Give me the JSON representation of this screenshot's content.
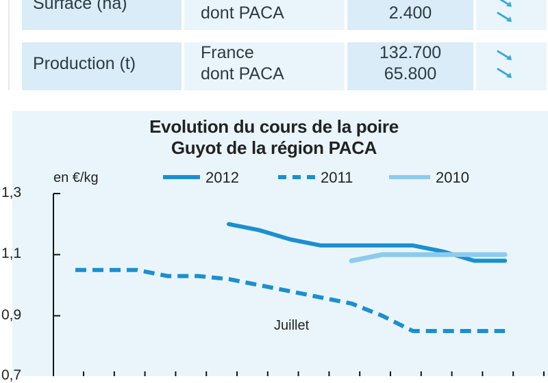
{
  "table": {
    "rows": [
      {
        "label": "Surface (ha)",
        "zones": [
          "",
          "dont PACA"
        ],
        "values": [
          "",
          "2.400"
        ],
        "trends": [
          "trend-down-icon",
          "trend-down-icon"
        ]
      },
      {
        "label": "Production (t)",
        "zones": [
          "France",
          "dont PACA"
        ],
        "values": [
          "132.700",
          "65.800"
        ],
        "trends": [
          "trend-down-icon",
          "trend-down-icon"
        ]
      }
    ]
  },
  "chart_data": {
    "type": "line",
    "title_line1": "Evolution du cours de la poire",
    "title_line2": "Guyot de la région PACA",
    "ylabel": "en €/kg",
    "ylim": [
      0.7,
      1.3
    ],
    "yticks": [
      "1,3",
      "1,1",
      "0,9",
      "0,7"
    ],
    "ytick_values": [
      1.3,
      1.1,
      0.9,
      0.7
    ],
    "x": [
      0,
      1,
      2,
      3,
      4,
      5,
      6,
      7,
      8,
      9,
      10,
      11,
      12,
      13,
      14,
      15
    ],
    "annotation": "Juillet",
    "series": [
      {
        "name": "2012",
        "style": "solid",
        "color": "#1a8fd2",
        "values": [
          null,
          null,
          null,
          null,
          null,
          1.2,
          1.18,
          1.15,
          1.13,
          1.13,
          1.13,
          1.13,
          1.11,
          1.08,
          1.08,
          null
        ]
      },
      {
        "name": "2011",
        "style": "dashed",
        "color": "#1a8fd2",
        "values": [
          1.05,
          1.05,
          1.05,
          1.03,
          1.03,
          1.02,
          1.0,
          0.98,
          0.96,
          0.94,
          0.9,
          0.85,
          0.85,
          0.85,
          0.85,
          null
        ]
      },
      {
        "name": "2010",
        "style": "solid",
        "color": "#8ccbee",
        "values": [
          null,
          null,
          null,
          null,
          null,
          null,
          null,
          null,
          null,
          1.08,
          1.1,
          1.1,
          1.1,
          1.1,
          1.1,
          null
        ]
      }
    ]
  },
  "colors": {
    "accent": "#1a8fd2",
    "light_series": "#8ccbee",
    "panel_bg": "#eaf5fb",
    "cell_bg": "#d9ecf7",
    "arrow": "#3ba8dc"
  }
}
